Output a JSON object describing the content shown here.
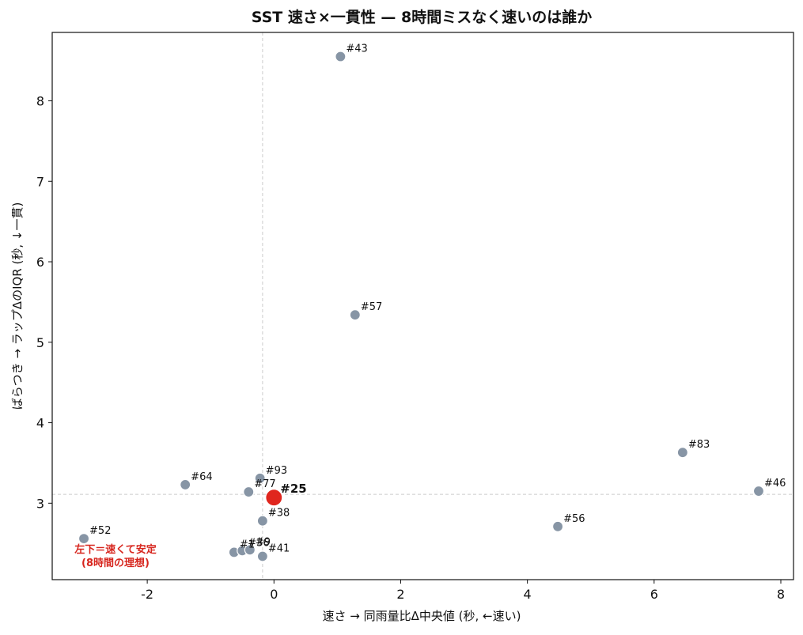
{
  "chart_data": {
    "type": "scatter",
    "title": "SST 速さ×一貫性 — 8時間ミスなく速いのは誰か",
    "xlabel": "速さ → 同雨量比Δ中央値 (秒, ←速い)",
    "ylabel": "ばらつき → ラップΔのIQR (秒, ↓一貫)",
    "xlim": [
      -3.5,
      8.2
    ],
    "ylim": [
      2.05,
      8.85
    ],
    "xticks": [
      -2,
      0,
      2,
      4,
      6,
      8
    ],
    "xtick_labels": [
      "-2",
      "0",
      "2",
      "4",
      "6",
      "8"
    ],
    "yticks": [
      3,
      4,
      5,
      6,
      7,
      8
    ],
    "ytick_labels": [
      "3",
      "4",
      "5",
      "6",
      "7",
      "8"
    ],
    "reference_lines": {
      "x": -0.18,
      "y": 3.11
    },
    "grid": false,
    "legend": "none",
    "points": [
      {
        "label": "#43",
        "x": 1.05,
        "y": 8.55
      },
      {
        "label": "#57",
        "x": 1.28,
        "y": 5.34
      },
      {
        "label": "#83",
        "x": 6.45,
        "y": 3.63
      },
      {
        "label": "#46",
        "x": 7.65,
        "y": 3.15
      },
      {
        "label": "#56",
        "x": 4.48,
        "y": 2.71
      },
      {
        "label": "#93",
        "x": -0.22,
        "y": 3.31
      },
      {
        "label": "#77",
        "x": -0.4,
        "y": 3.14
      },
      {
        "label": "#64",
        "x": -1.4,
        "y": 3.23
      },
      {
        "label": "#38",
        "x": -0.18,
        "y": 2.78
      },
      {
        "label": "#52",
        "x": -3.0,
        "y": 2.56
      },
      {
        "label": "#1",
        "x": -0.63,
        "y": 2.39
      },
      {
        "label": "#36",
        "x": -0.5,
        "y": 2.41
      },
      {
        "label": "#9",
        "x": -0.38,
        "y": 2.42
      },
      {
        "label": "#41",
        "x": -0.18,
        "y": 2.34
      },
      {
        "label": "#25",
        "x": 0.0,
        "y": 3.07,
        "highlight": true
      }
    ],
    "annotation": {
      "line1": "左下＝速くて安定",
      "line2": "(8時間の理想)"
    }
  },
  "colors": {
    "point": "#8795a5",
    "highlight": "#e0261e",
    "annotation": "#d7261e",
    "refline": "#cccccc",
    "frame": "#111111"
  }
}
